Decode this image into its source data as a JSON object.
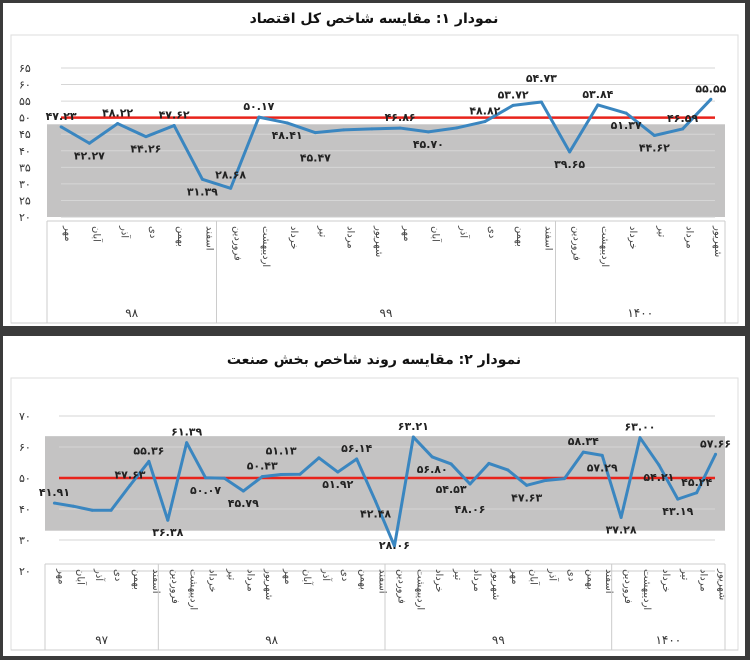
{
  "chart_data": [
    {
      "type": "line",
      "title": "نمودار ۱: مقایسه شاخص کل اقتصاد",
      "ylim": [
        20,
        65
      ],
      "yticks": [
        "۲۰",
        "۲۵",
        "۳۰",
        "۳۵",
        "۴۰",
        "۴۵",
        "۵۰",
        "۵۵",
        "۶۰",
        "۶۵"
      ],
      "ytick_values": [
        20,
        25,
        30,
        35,
        40,
        45,
        50,
        55,
        60,
        65
      ],
      "reference_line": 50,
      "band": [
        20,
        48
      ],
      "groups": [
        {
          "year": "۹۸",
          "months": [
            "مهر",
            "آبان",
            "آذر",
            "دی",
            "بهمن",
            "اسفند"
          ]
        },
        {
          "year": "۹۹",
          "months": [
            "فروردین",
            "اردیبهشت",
            "خرداد",
            "تیر",
            "مرداد",
            "شهریور",
            "مهر",
            "آبان",
            "آذر",
            "دی",
            "بهمن",
            "اسفند"
          ]
        },
        {
          "year": "۱۴۰۰",
          "months": [
            "فروردین",
            "اردیبهشت",
            "خرداد",
            "تیر",
            "مرداد",
            "شهریور"
          ]
        }
      ],
      "values": [
        47.23,
        42.27,
        48.22,
        44.26,
        47.62,
        31.39,
        28.68,
        50.17,
        48.41,
        45.47,
        46.3,
        46.6,
        46.86,
        45.7,
        46.9,
        48.82,
        53.72,
        54.73,
        39.65,
        53.84,
        51.37,
        44.62,
        46.59,
        55.55
      ],
      "labeled": [
        0,
        1,
        2,
        3,
        4,
        5,
        6,
        7,
        8,
        9,
        12,
        13,
        15,
        16,
        17,
        18,
        19,
        20,
        21,
        22,
        23
      ]
    },
    {
      "type": "line",
      "title": "نمودار ۲: مقایسه روند شاخص بخش صنعت",
      "ylim": [
        20,
        70
      ],
      "yticks": [
        "۲۰",
        "۳۰",
        "۴۰",
        "۵۰",
        "۶۰",
        "۷۰"
      ],
      "ytick_values": [
        20,
        30,
        40,
        50,
        60,
        70
      ],
      "reference_line": 50,
      "band": [
        33,
        63.5
      ],
      "groups": [
        {
          "year": "۹۷",
          "months": [
            "مهر",
            "آبان",
            "آذر",
            "دی",
            "بهمن",
            "اسفند"
          ]
        },
        {
          "year": "۹۸",
          "months": [
            "فروردین",
            "اردیبهشت",
            "خرداد",
            "تیر",
            "مرداد",
            "شهریور",
            "مهر",
            "آبان",
            "آذر",
            "دی",
            "بهمن",
            "اسفند"
          ]
        },
        {
          "year": "۹۹",
          "months": [
            "فروردین",
            "اردیبهشت",
            "خرداد",
            "تیر",
            "مرداد",
            "شهریور",
            "مهر",
            "آبان",
            "آذر",
            "دی",
            "بهمن",
            "اسفند"
          ]
        },
        {
          "year": "۱۴۰۰",
          "months": [
            "فروردین",
            "اردیبهشت",
            "خرداد",
            "تیر",
            "مرداد",
            "شهریور"
          ]
        }
      ],
      "values": [
        41.91,
        40.9,
        39.6,
        39.6,
        47.63,
        55.36,
        36.38,
        61.39,
        50.07,
        49.9,
        45.79,
        50.43,
        51.13,
        51.2,
        56.5,
        51.92,
        56.14,
        42.48,
        28.06,
        63.21,
        56.8,
        54.53,
        48.06,
        54.7,
        52.6,
        47.63,
        49.2,
        49.8,
        58.34,
        57.29,
        37.28,
        63.0,
        54.21,
        43.19,
        45.24,
        57.66
      ],
      "labeled": [
        0,
        4,
        5,
        6,
        7,
        8,
        10,
        11,
        12,
        15,
        16,
        17,
        18,
        19,
        20,
        21,
        22,
        25,
        28,
        29,
        30,
        31,
        32,
        33,
        34,
        35
      ]
    }
  ],
  "colors": {
    "line": "#3a86c0",
    "ref": "#e8231b",
    "band": "#c4c3c3",
    "grid": "#d6d6d6"
  }
}
